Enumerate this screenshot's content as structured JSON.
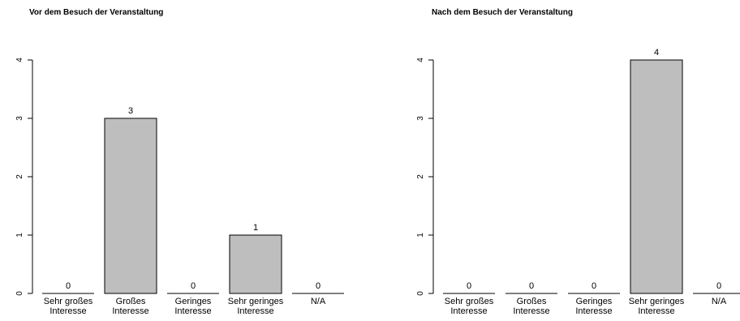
{
  "chart_data": [
    {
      "type": "bar",
      "title": "Vor dem Besuch der Veranstaltung",
      "categories": [
        [
          "Sehr großes",
          "Interesse"
        ],
        [
          "Großes",
          "Interesse"
        ],
        [
          "Geringes",
          "Interesse"
        ],
        [
          "Sehr geringes",
          "Interesse"
        ],
        [
          "N/A"
        ]
      ],
      "values": [
        0,
        3,
        0,
        1,
        0
      ],
      "data_labels": [
        "0",
        "3",
        "0",
        "1",
        "0"
      ],
      "ylim": [
        0,
        4
      ],
      "yticks": [
        0,
        1,
        2,
        3,
        4
      ],
      "bar_color": "#bebebe",
      "grid": false,
      "legend": false
    },
    {
      "type": "bar",
      "title": "Nach dem Besuch der Veranstaltung",
      "categories": [
        [
          "Sehr großes",
          "Interesse"
        ],
        [
          "Großes",
          "Interesse"
        ],
        [
          "Geringes",
          "Interesse"
        ],
        [
          "Sehr geringes",
          "Interesse"
        ],
        [
          "N/A"
        ]
      ],
      "values": [
        0,
        0,
        0,
        4,
        0
      ],
      "data_labels": [
        "0",
        "0",
        "0",
        "4",
        "0"
      ],
      "ylim": [
        0,
        4
      ],
      "yticks": [
        0,
        1,
        2,
        3,
        4
      ],
      "bar_color": "#bebebe",
      "grid": false,
      "legend": false
    }
  ]
}
